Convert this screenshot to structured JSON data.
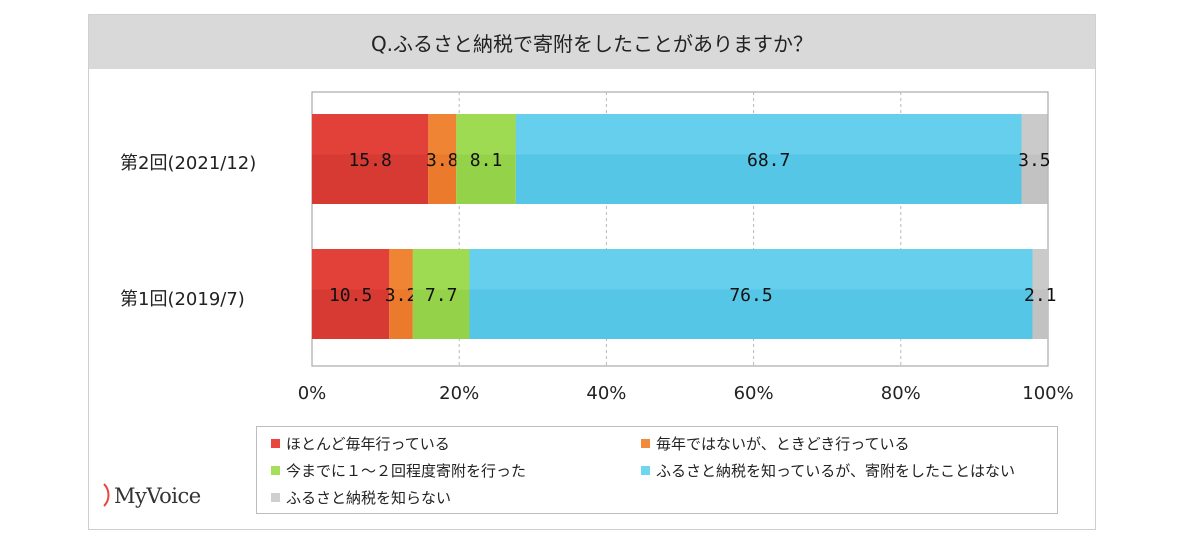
{
  "title": "Q.ふるさと納税で寄附をしたことがありますか？",
  "chart_data": {
    "type": "bar",
    "orientation": "horizontal",
    "stacked": true,
    "categories": [
      "第2回(2021/12)",
      "第1回(2019/7)"
    ],
    "series": [
      {
        "name": "ほとんど毎年行っている",
        "color": "#e8463e",
        "values": [
          15.8,
          10.5
        ]
      },
      {
        "name": "毎年ではないが、ときどき行っている",
        "color": "#f28a3c",
        "values": [
          3.8,
          3.2
        ]
      },
      {
        "name": "今までに１～２回程度寄附を行った",
        "color": "#a6e05a",
        "values": [
          8.1,
          7.7
        ]
      },
      {
        "name": "ふるさと納税を知っているが、寄附をしたことはない",
        "color": "#6fd6f2",
        "values": [
          68.7,
          76.5
        ]
      },
      {
        "name": "ふるさと納税を知らない",
        "color": "#cfcfcf",
        "values": [
          3.5,
          2.1
        ]
      }
    ],
    "xlim": [
      0,
      100
    ],
    "xticks": [
      "0%",
      "20%",
      "40%",
      "60%",
      "80%",
      "100%"
    ],
    "grid": true,
    "legend_position": "bottom"
  },
  "legend": {
    "items": [
      "ほとんど毎年行っている",
      "毎年ではないが、ときどき行っている",
      "今までに１～２回程度寄附を行った",
      "ふるさと納税を知っているが、寄附をしたことはない",
      "ふるさと納税を知らない"
    ]
  },
  "logo": {
    "text": "MyVoice"
  }
}
